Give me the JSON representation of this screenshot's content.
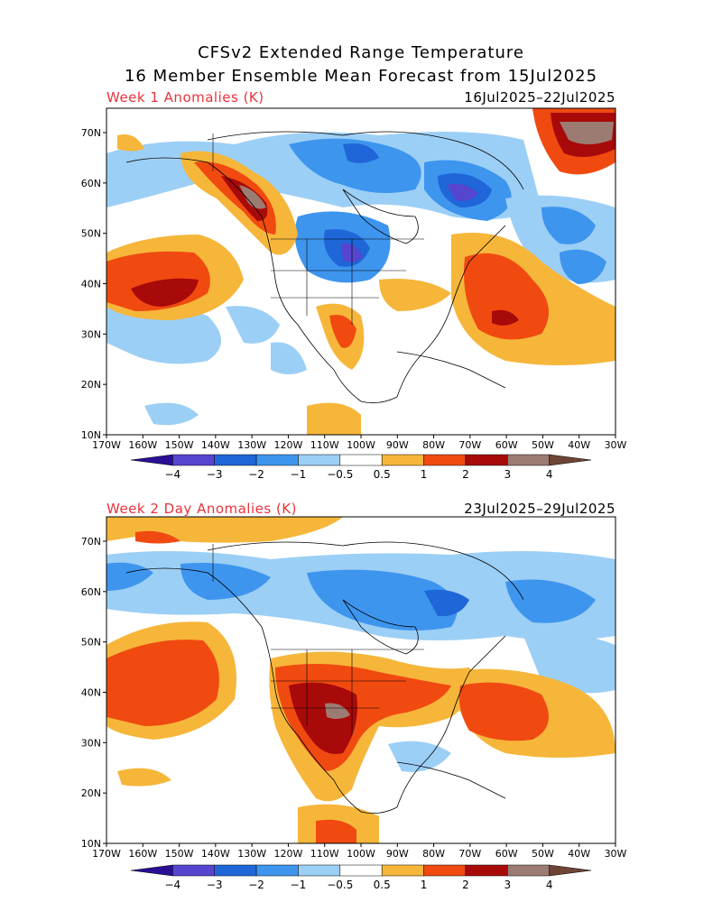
{
  "title": {
    "line1": "CFSv2 Extended Range Temperature",
    "line2": "16 Member Ensemble Mean Forecast from 15Jul2025"
  },
  "panels": [
    {
      "label": "Week 1 Anomalies (K)",
      "dates": "16Jul2025–22Jul2025",
      "lat_ticks": [
        "70N",
        "60N",
        "50N",
        "40N",
        "30N",
        "20N",
        "10N"
      ],
      "lon_ticks": [
        "170W",
        "160W",
        "150W",
        "140W",
        "130W",
        "120W",
        "110W",
        "100W",
        "90W",
        "80W",
        "70W",
        "60W",
        "50W",
        "40W",
        "30W"
      ]
    },
    {
      "label": "Week 2 Day Anomalies (K)",
      "dates": "23Jul2025–29Jul2025",
      "lat_ticks": [
        "70N",
        "60N",
        "50N",
        "40N",
        "30N",
        "20N",
        "10N"
      ],
      "lon_ticks": [
        "170W",
        "160W",
        "150W",
        "140W",
        "130W",
        "120W",
        "110W",
        "100W",
        "90W",
        "80W",
        "70W",
        "60W",
        "50W",
        "40W",
        "30W"
      ]
    }
  ],
  "colorbar": {
    "labels": [
      "−4",
      "−3",
      "−2",
      "−1",
      "−0.5",
      "0.5",
      "1",
      "2",
      "3",
      "4"
    ],
    "colors": [
      "#2a0f96",
      "#5545cf",
      "#1f66d8",
      "#3e95ee",
      "#9ccff5",
      "#ffffff",
      "#f6b63a",
      "#f04a10",
      "#a80a0a",
      "#9c7b72",
      "#6e4535"
    ]
  }
}
